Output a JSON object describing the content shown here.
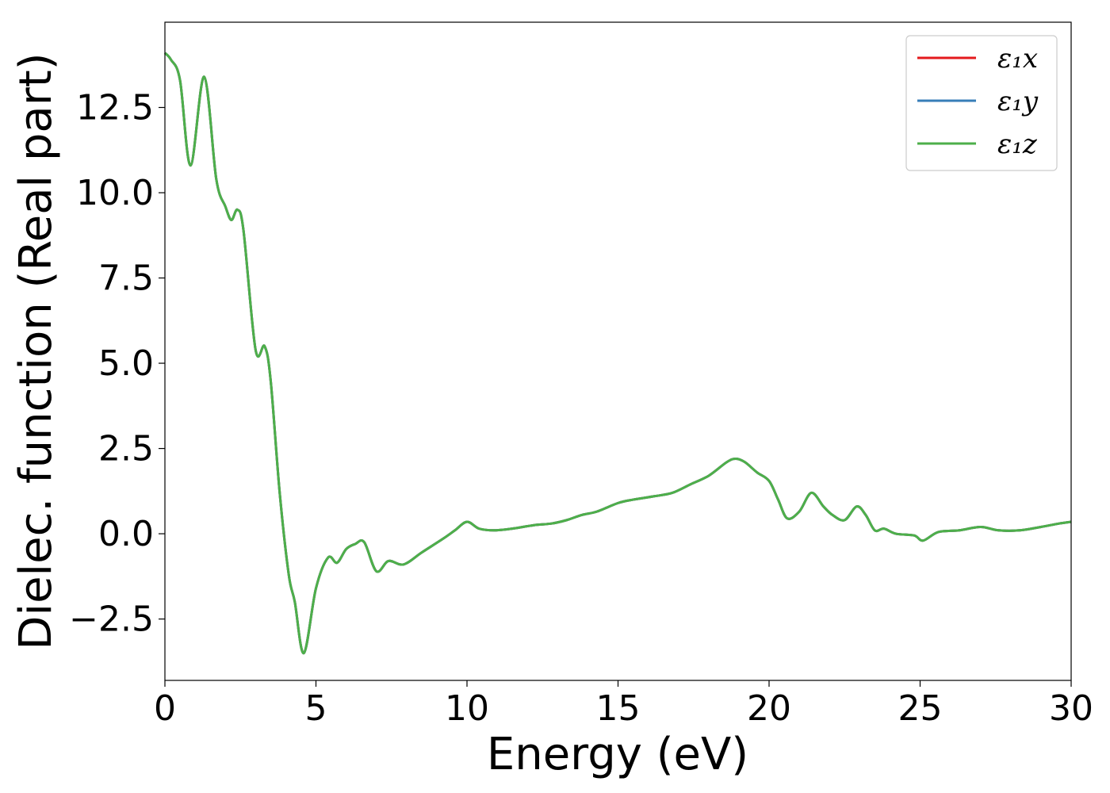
{
  "chart_data": {
    "type": "line",
    "title": "",
    "xlabel": "Energy (eV)",
    "ylabel": "Dielec. function (Real part)",
    "xlim": [
      0,
      30
    ],
    "ylim": [
      -4.3,
      15.0
    ],
    "xticks": [
      0,
      5,
      10,
      15,
      20,
      25,
      30
    ],
    "xtick_labels": [
      "0",
      "5",
      "10",
      "15",
      "20",
      "25",
      "30"
    ],
    "yticks": [
      -2.5,
      0.0,
      2.5,
      5.0,
      7.5,
      10.0,
      12.5
    ],
    "ytick_labels": [
      "−2.5",
      "0.0",
      "2.5",
      "5.0",
      "7.5",
      "10.0",
      "12.5"
    ],
    "grid": false,
    "legend_position": "top-right",
    "x": [
      0.0,
      0.2,
      0.5,
      0.85,
      1.3,
      1.7,
      2.0,
      2.2,
      2.4,
      2.6,
      3.0,
      3.3,
      3.5,
      3.8,
      4.1,
      4.3,
      4.6,
      5.0,
      5.4,
      5.7,
      6.0,
      6.3,
      6.6,
      7.0,
      7.4,
      7.9,
      8.5,
      9.2,
      9.6,
      10.0,
      10.4,
      10.9,
      11.5,
      12.2,
      12.8,
      13.3,
      13.8,
      14.3,
      15.0,
      15.5,
      16.2,
      16.8,
      17.4,
      18.0,
      18.6,
      18.9,
      19.2,
      19.6,
      20.0,
      20.3,
      20.6,
      21.0,
      21.4,
      21.8,
      22.1,
      22.5,
      22.9,
      23.2,
      23.5,
      23.8,
      24.2,
      24.8,
      25.1,
      25.6,
      26.3,
      27.0,
      27.6,
      28.3,
      29.0,
      29.6,
      30.0
    ],
    "series": [
      {
        "name": "ε₁x",
        "color": "#e41a1c",
        "values": [
          14.1,
          13.9,
          13.3,
          10.8,
          13.4,
          10.4,
          9.6,
          9.2,
          9.5,
          8.9,
          5.4,
          5.5,
          4.5,
          1.2,
          -1.2,
          -2.0,
          -3.5,
          -1.6,
          -0.7,
          -0.85,
          -0.45,
          -0.3,
          -0.25,
          -1.1,
          -0.8,
          -0.9,
          -0.55,
          -0.15,
          0.1,
          0.35,
          0.15,
          0.1,
          0.15,
          0.25,
          0.3,
          0.4,
          0.55,
          0.65,
          0.9,
          1.0,
          1.1,
          1.2,
          1.45,
          1.7,
          2.1,
          2.2,
          2.1,
          1.8,
          1.55,
          1.0,
          0.45,
          0.65,
          1.2,
          0.8,
          0.55,
          0.4,
          0.8,
          0.55,
          0.1,
          0.15,
          0.0,
          -0.05,
          -0.2,
          0.05,
          0.1,
          0.2,
          0.1,
          0.1,
          0.2,
          0.3,
          0.35
        ]
      },
      {
        "name": "ε₁y",
        "color": "#377eb8",
        "values": [
          14.1,
          13.9,
          13.3,
          10.8,
          13.4,
          10.4,
          9.6,
          9.2,
          9.5,
          8.9,
          5.4,
          5.5,
          4.5,
          1.2,
          -1.2,
          -2.0,
          -3.5,
          -1.6,
          -0.7,
          -0.85,
          -0.45,
          -0.3,
          -0.25,
          -1.1,
          -0.8,
          -0.9,
          -0.55,
          -0.15,
          0.1,
          0.35,
          0.15,
          0.1,
          0.15,
          0.25,
          0.3,
          0.4,
          0.55,
          0.65,
          0.9,
          1.0,
          1.1,
          1.2,
          1.45,
          1.7,
          2.1,
          2.2,
          2.1,
          1.8,
          1.55,
          1.0,
          0.45,
          0.65,
          1.2,
          0.8,
          0.55,
          0.4,
          0.8,
          0.55,
          0.1,
          0.15,
          0.0,
          -0.05,
          -0.2,
          0.05,
          0.1,
          0.2,
          0.1,
          0.1,
          0.2,
          0.3,
          0.35
        ]
      },
      {
        "name": "ε₁z",
        "color": "#4daf4a",
        "values": [
          14.1,
          13.9,
          13.3,
          10.8,
          13.4,
          10.4,
          9.6,
          9.2,
          9.5,
          8.9,
          5.4,
          5.5,
          4.5,
          1.2,
          -1.2,
          -2.0,
          -3.5,
          -1.6,
          -0.7,
          -0.85,
          -0.45,
          -0.3,
          -0.25,
          -1.1,
          -0.8,
          -0.9,
          -0.55,
          -0.15,
          0.1,
          0.35,
          0.15,
          0.1,
          0.15,
          0.25,
          0.3,
          0.4,
          0.55,
          0.65,
          0.9,
          1.0,
          1.1,
          1.2,
          1.45,
          1.7,
          2.1,
          2.2,
          2.1,
          1.8,
          1.55,
          1.0,
          0.45,
          0.65,
          1.2,
          0.8,
          0.55,
          0.4,
          0.8,
          0.55,
          0.1,
          0.15,
          0.0,
          -0.05,
          -0.2,
          0.05,
          0.1,
          0.2,
          0.1,
          0.1,
          0.2,
          0.3,
          0.35
        ]
      }
    ]
  }
}
